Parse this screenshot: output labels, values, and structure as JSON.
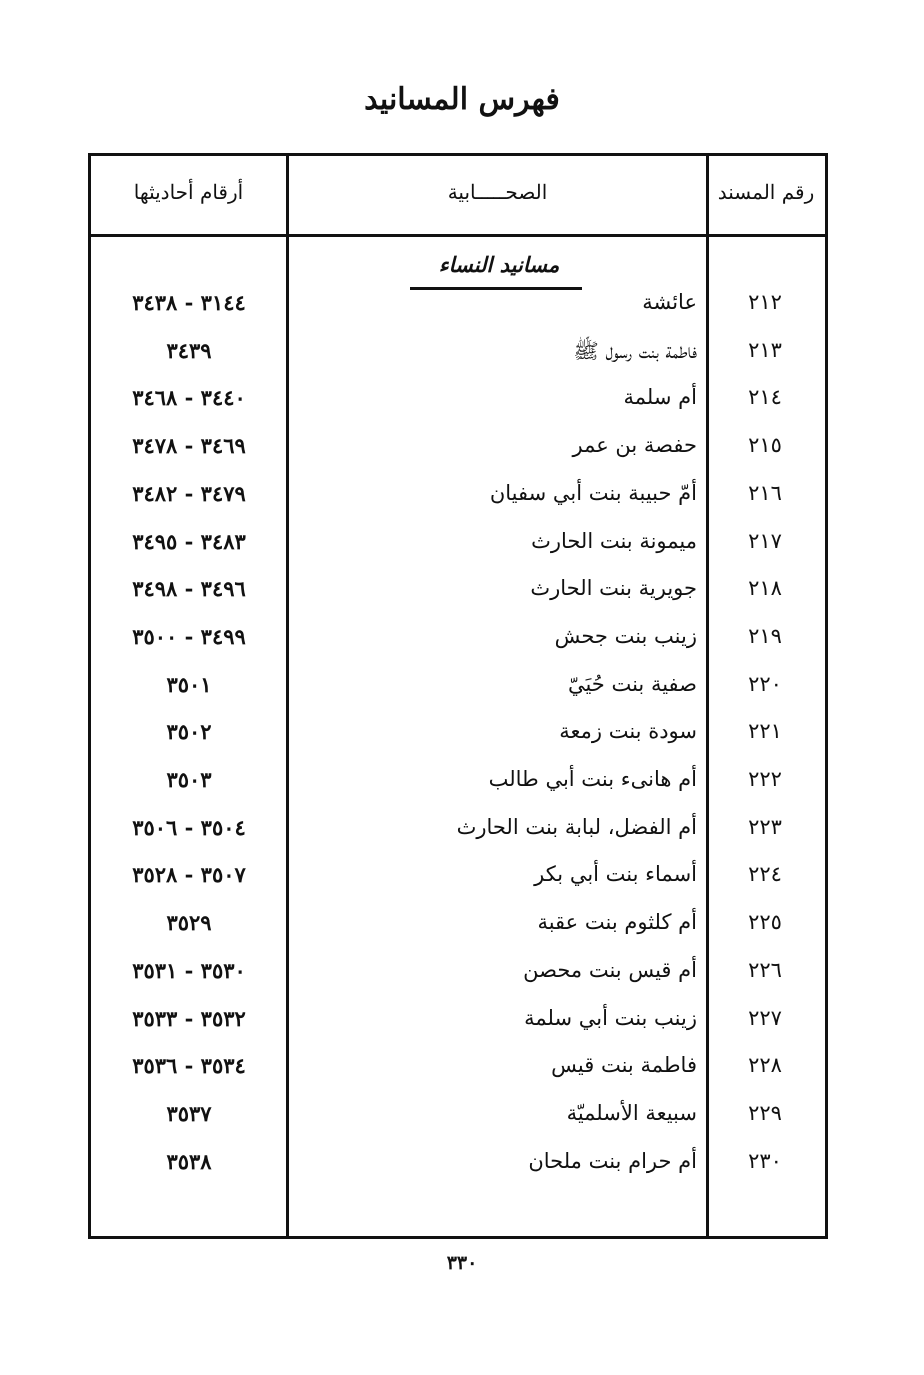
{
  "title": "فهرس المسانيد",
  "table": {
    "headers": {
      "number": "رقم المسند",
      "companion": "الصحـــــابية",
      "hadith_numbers": "أرقام أحاديثها"
    },
    "section_heading": "مسانيد النساء",
    "rows": [
      {
        "number": "٢١٢",
        "name": "عائشة",
        "hadith": "٣١٤٤ - ٣٤٣٨"
      },
      {
        "number": "٢١٣",
        "name": "فاطمة بنت رسول ﷺ",
        "hadith": "٣٤٣٩"
      },
      {
        "number": "٢١٤",
        "name": "أم سلمة",
        "hadith": "٣٤٤٠ - ٣٤٦٨"
      },
      {
        "number": "٢١٥",
        "name": "حفصة بن عمر",
        "hadith": "٣٤٦٩ - ٣٤٧٨"
      },
      {
        "number": "٢١٦",
        "name": "أمّ حبيبة بنت أبي سفيان",
        "hadith": "٣٤٧٩ - ٣٤٨٢"
      },
      {
        "number": "٢١٧",
        "name": "ميمونة بنت الحارث",
        "hadith": "٣٤٨٣ - ٣٤٩٥"
      },
      {
        "number": "٢١٨",
        "name": "جويرية بنت الحارث",
        "hadith": "٣٤٩٦ - ٣٤٩٨"
      },
      {
        "number": "٢١٩",
        "name": "زينب بنت جحش",
        "hadith": "٣٤٩٩ - ٣٥٠٠"
      },
      {
        "number": "٢٢٠",
        "name": "صفية بنت حُيَيّ",
        "hadith": "٣٥٠١"
      },
      {
        "number": "٢٢١",
        "name": "سودة بنت زمعة",
        "hadith": "٣٥٠٢"
      },
      {
        "number": "٢٢٢",
        "name": "أم هانىء بنت أبي طالب",
        "hadith": "٣٥٠٣"
      },
      {
        "number": "٢٢٣",
        "name": "أم الفضل، لبابة بنت الحارث",
        "hadith": "٣٥٠٤ - ٣٥٠٦"
      },
      {
        "number": "٢٢٤",
        "name": "أسماء بنت أبي بكر",
        "hadith": "٣٥٠٧ - ٣٥٢٨"
      },
      {
        "number": "٢٢٥",
        "name": "أم كلثوم بنت عقبة",
        "hadith": "٣٥٢٩"
      },
      {
        "number": "٢٢٦",
        "name": "أم قيس بنت محصن",
        "hadith": "٣٥٣٠ - ٣٥٣١"
      },
      {
        "number": "٢٢٧",
        "name": "زينب بنت أبي سلمة",
        "hadith": "٣٥٣٢ - ٣٥٣٣"
      },
      {
        "number": "٢٢٨",
        "name": "فاطمة بنت قيس",
        "hadith": "٣٥٣٤ - ٣٥٣٦"
      },
      {
        "number": "٢٢٩",
        "name": "سبيعة الأسلميّة",
        "hadith": "٣٥٣٧"
      },
      {
        "number": "٢٣٠",
        "name": "أم حرام بنت ملحان",
        "hadith": "٣٥٣٨"
      }
    ]
  },
  "page_number": "٣٣٠"
}
